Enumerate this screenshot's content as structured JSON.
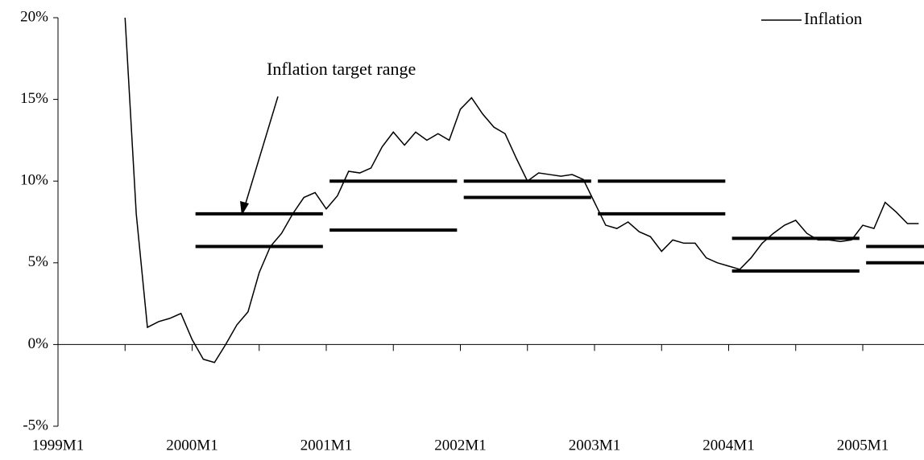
{
  "chart_data": {
    "type": "line",
    "categories": [
      "1999M1",
      null,
      null,
      null,
      null,
      null,
      null,
      null,
      null,
      null,
      null,
      null,
      "2000M1",
      null,
      null,
      null,
      null,
      null,
      null,
      null,
      null,
      null,
      null,
      null,
      "2001M1",
      null,
      null,
      null,
      null,
      null,
      null,
      null,
      null,
      null,
      null,
      null,
      "2002M1",
      null,
      null,
      null,
      null,
      null,
      null,
      null,
      null,
      null,
      null,
      null,
      "2003M1",
      null,
      null,
      null,
      null,
      null,
      null,
      null,
      null,
      null,
      null,
      null,
      "2004M1",
      null,
      null,
      null,
      null,
      null,
      null,
      null,
      null,
      null,
      null,
      null,
      "2005M1",
      null,
      null,
      null,
      null,
      null
    ],
    "series": [
      {
        "name": "Inflation",
        "color": "#000000",
        "values": [
          null,
          null,
          null,
          null,
          null,
          null,
          20,
          8,
          1.05,
          1.4,
          1.6,
          1.9,
          0.3,
          -0.9,
          -1.1,
          0,
          1.2,
          2.0,
          4.4,
          6.0,
          6.8,
          8.0,
          9.0,
          9.3,
          8.3,
          9.1,
          10.6,
          10.5,
          10.8,
          12.1,
          13.0,
          12.2,
          13.0,
          12.5,
          12.9,
          12.5,
          14.4,
          15.1,
          14.1,
          13.3,
          12.9,
          11.4,
          10.0,
          10.5,
          10.4,
          10.3,
          10.4,
          10.1,
          8.7,
          7.3,
          7.1,
          7.5,
          6.9,
          6.6,
          5.7,
          6.4,
          6.2,
          6.2,
          5.3,
          5.0,
          4.8,
          4.6,
          5.3,
          6.2,
          6.8,
          7.3,
          7.6,
          6.8,
          6.4,
          6.4,
          6.3,
          6.4,
          7.3,
          7.1,
          8.7,
          8.1,
          7.4,
          7.4
        ]
      }
    ],
    "target_range": {
      "label": "Inflation target range",
      "color": "#000000",
      "upper": [
        8,
        10,
        10,
        10,
        6.5,
        6
      ],
      "lower": [
        6,
        7,
        9,
        8,
        4.5,
        5
      ]
    },
    "ylim": [
      -5,
      20
    ],
    "yticks": [
      {
        "value": -5,
        "label": "-5%"
      },
      {
        "value": 0,
        "label": "0%"
      },
      {
        "value": 5,
        "label": "5%"
      },
      {
        "value": 10,
        "label": "10%"
      },
      {
        "value": 15,
        "label": "15%"
      },
      {
        "value": 20,
        "label": "20%"
      }
    ],
    "legend": "upper right",
    "grid": false
  }
}
